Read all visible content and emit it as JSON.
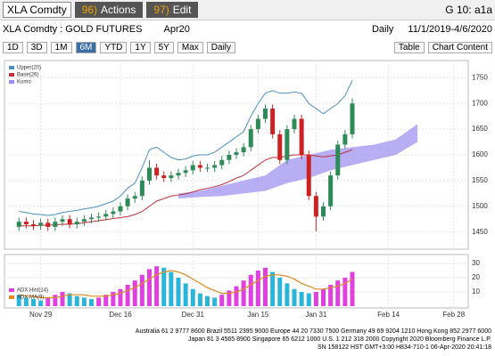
{
  "toolbar": {
    "ticker": "XLA Comdty",
    "actions_num": "96)",
    "actions": "Actions",
    "edit_num": "97)",
    "edit": "Edit",
    "page": "G 10: a1a"
  },
  "header": {
    "security": "XLA Comdty : GOLD FUTURES",
    "contract": "Apr20",
    "period": "Daily",
    "range": "11/1/2019-4/6/2020"
  },
  "controls": {
    "ranges": [
      "1D",
      "3D",
      "1M",
      "6M",
      "YTD",
      "1Y",
      "5Y",
      "Max"
    ],
    "frequency": "Daily",
    "table": "Table",
    "chart_content": "Chart Content"
  },
  "chart_data": [
    {
      "type": "candlestick",
      "up_color": "#2e8b57",
      "down_color": "#cc2222",
      "grid": true,
      "open": [
        1460,
        1470,
        1465,
        1462,
        1468,
        1460,
        1470,
        1475,
        1465,
        1470,
        1475,
        1478,
        1480,
        1485,
        1490,
        1500,
        1515,
        1520,
        1550,
        1575,
        1560,
        1555,
        1560,
        1565,
        1570,
        1580,
        1575,
        1575,
        1580,
        1590,
        1600,
        1605,
        1615,
        1650,
        1670,
        1690,
        1640,
        1590,
        1650,
        1670,
        1600,
        1520,
        1480,
        1500,
        1560,
        1620,
        1640
      ],
      "high": [
        1478,
        1478,
        1473,
        1476,
        1476,
        1478,
        1483,
        1483,
        1478,
        1483,
        1486,
        1488,
        1493,
        1498,
        1508,
        1523,
        1528,
        1558,
        1590,
        1583,
        1568,
        1568,
        1573,
        1578,
        1588,
        1588,
        1583,
        1588,
        1598,
        1608,
        1613,
        1623,
        1658,
        1678,
        1698,
        1698,
        1648,
        1658,
        1678,
        1678,
        1608,
        1528,
        1508,
        1568,
        1628,
        1648,
        1710
      ],
      "low": [
        1452,
        1457,
        1454,
        1454,
        1452,
        1452,
        1462,
        1457,
        1457,
        1462,
        1467,
        1470,
        1472,
        1477,
        1482,
        1492,
        1507,
        1512,
        1542,
        1552,
        1547,
        1547,
        1552,
        1557,
        1562,
        1567,
        1567,
        1567,
        1572,
        1582,
        1592,
        1597,
        1607,
        1642,
        1662,
        1632,
        1582,
        1582,
        1642,
        1592,
        1512,
        1451,
        1472,
        1492,
        1552,
        1612,
        1632
      ],
      "close": [
        1470,
        1465,
        1462,
        1468,
        1460,
        1470,
        1475,
        1465,
        1470,
        1475,
        1478,
        1480,
        1485,
        1490,
        1500,
        1515,
        1520,
        1550,
        1575,
        1560,
        1555,
        1560,
        1565,
        1570,
        1580,
        1575,
        1575,
        1580,
        1590,
        1600,
        1605,
        1615,
        1650,
        1670,
        1690,
        1640,
        1590,
        1650,
        1670,
        1600,
        1520,
        1480,
        1500,
        1560,
        1620,
        1640,
        1700
      ],
      "series": [
        {
          "name": "Upper(20)",
          "color": "#4a90c0",
          "values": [
            1490,
            1488,
            1485,
            1484,
            1482,
            1484,
            1488,
            1490,
            1492,
            1495,
            1497,
            1500,
            1505,
            1510,
            1520,
            1535,
            1545,
            1575,
            1610,
            1615,
            1605,
            1595,
            1590,
            1592,
            1598,
            1600,
            1600,
            1605,
            1615,
            1625,
            1635,
            1645,
            1675,
            1700,
            1720,
            1725,
            1720,
            1720,
            1722,
            1720,
            1700,
            1690,
            1680,
            1690,
            1700,
            1715,
            1745
          ]
        },
        {
          "name": "Base(26)",
          "color": "#c0303a",
          "values": [
            1462,
            1462,
            1462,
            1463,
            1463,
            1464,
            1465,
            1465,
            1466,
            1468,
            1470,
            1472,
            1474,
            1476,
            1478,
            1480,
            1484,
            1490,
            1500,
            1510,
            1515,
            1520,
            1522,
            1524,
            1528,
            1532,
            1535,
            1538,
            1542,
            1548,
            1555,
            1560,
            1570,
            1580,
            1590,
            1595,
            1595,
            1598,
            1600,
            1600,
            1600,
            1598,
            1596,
            1598,
            1600,
            1605,
            1610
          ]
        }
      ],
      "cloud": {
        "name": "Kumo",
        "color": "#9a8cf0",
        "x": [
          22,
          25,
          28,
          31,
          34,
          37,
          40,
          43,
          46,
          49,
          52,
          55
        ],
        "lower": [
          1515,
          1518,
          1520,
          1525,
          1530,
          1545,
          1555,
          1570,
          1580,
          1590,
          1600,
          1625
        ],
        "upper": [
          1525,
          1530,
          1540,
          1550,
          1560,
          1590,
          1600,
          1610,
          1615,
          1620,
          1630,
          1660
        ]
      },
      "xlim": [
        -2,
        62
      ],
      "ylim": [
        1420,
        1780
      ],
      "yticks": [
        1450,
        1500,
        1550,
        1600,
        1650,
        1700,
        1750
      ],
      "xticks": [
        {
          "value": 3,
          "label": "Nov 29"
        },
        {
          "value": 14,
          "label": "Dec 16"
        },
        {
          "value": 24,
          "label": "Dec 31"
        },
        {
          "value": 33,
          "label": "Jan 15"
        },
        {
          "value": 41,
          "label": "Jan 31"
        },
        {
          "value": 51,
          "label": "Feb 14"
        },
        {
          "value": 60,
          "label": "Feb 28"
        }
      ]
    },
    {
      "type": "bar",
      "color": "#2bb5d8",
      "series": [
        {
          "name": "ADX Hist(14)",
          "color": "#e040e0",
          "values": [
            8,
            6,
            5,
            4,
            6,
            8,
            10,
            9,
            7,
            6,
            5,
            6,
            8,
            10,
            12,
            15,
            18,
            22,
            26,
            28,
            27,
            24,
            20,
            16,
            12,
            9,
            7,
            6,
            8,
            11,
            14,
            18,
            22,
            25,
            27,
            24,
            20,
            16,
            12,
            10,
            9,
            10,
            12,
            15,
            18,
            20,
            24
          ]
        },
        {
          "name": "ADX MA(9)",
          "color": "#e08a20",
          "values": [
            8,
            7,
            7,
            6,
            6,
            6,
            7,
            8,
            8,
            8,
            7,
            7,
            7,
            8,
            9,
            11,
            13,
            16,
            19,
            22,
            24,
            25,
            24,
            22,
            19,
            16,
            13,
            11,
            9,
            9,
            10,
            12,
            15,
            18,
            21,
            22,
            22,
            21,
            19,
            16,
            14,
            12,
            12,
            13,
            14,
            16,
            19
          ]
        }
      ],
      "ylim": [
        0,
        35
      ],
      "yticks": [
        10,
        20,
        30
      ]
    }
  ],
  "footer": [
    "Australia 61 2 9777 8600 Brazil 5511 2395 9000 Europe 44 20 7330 7500 Germany 49 69 9204 1210 Hong Kong 852 2977 6000",
    "Japan 81 3 4565 8900       Singapore 65 6212 1000       U.S. 1 212 318 2000       Copyright 2020 Bloomberg Finance L.P.",
    "SN 158122 HST  GMT+3:00 H834-710-1 06-Apr-2020 20:41:18"
  ]
}
